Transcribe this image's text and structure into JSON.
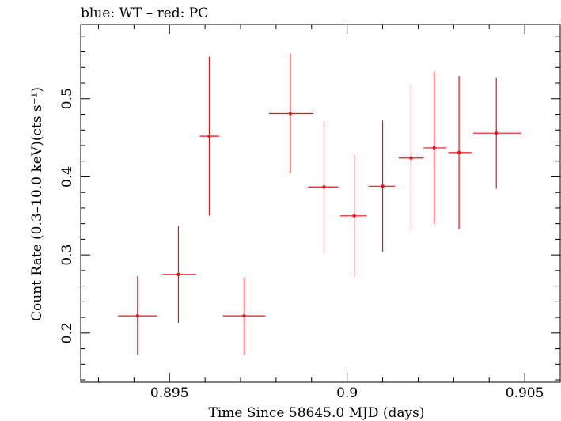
{
  "chart_data": {
    "type": "scatter",
    "title": "blue: WT – red: PC",
    "xlabel": "Time Since 58645.0 MJD (days)",
    "ylabel": "Count Rate (0.3–10.0 keV)(cts s⁻¹)",
    "xlim": [
      0.8925,
      0.906
    ],
    "ylim": [
      0.137,
      0.595
    ],
    "x_ticks": [
      0.895,
      0.9,
      0.905
    ],
    "x_tick_labels": [
      "0.895",
      "0.9",
      "0.905"
    ],
    "y_ticks": [
      0.2,
      0.3,
      0.4,
      0.5
    ],
    "y_tick_labels": [
      "0.2",
      "0.3",
      "0.4",
      "0.5"
    ],
    "grid": false,
    "series": [
      {
        "name": "PC",
        "color": "#e8141b",
        "points": [
          {
            "x": 0.8941,
            "y": 0.222,
            "xlo": 0.89355,
            "xhi": 0.89465,
            "ylo": 0.172,
            "yhi": 0.273
          },
          {
            "x": 0.89525,
            "y": 0.275,
            "xlo": 0.8948,
            "xhi": 0.89575,
            "ylo": 0.213,
            "yhi": 0.337
          },
          {
            "x": 0.89612,
            "y": 0.452,
            "xlo": 0.89585,
            "xhi": 0.8964,
            "ylo": 0.35,
            "yhi": 0.554
          },
          {
            "x": 0.8971,
            "y": 0.222,
            "xlo": 0.8965,
            "xhi": 0.8977,
            "ylo": 0.172,
            "yhi": 0.271
          },
          {
            "x": 0.8984,
            "y": 0.481,
            "xlo": 0.8978,
            "xhi": 0.89905,
            "ylo": 0.405,
            "yhi": 0.558
          },
          {
            "x": 0.89935,
            "y": 0.387,
            "xlo": 0.8989,
            "xhi": 0.89975,
            "ylo": 0.302,
            "yhi": 0.472
          },
          {
            "x": 0.9002,
            "y": 0.35,
            "xlo": 0.8998,
            "xhi": 0.90055,
            "ylo": 0.272,
            "yhi": 0.428
          },
          {
            "x": 0.901,
            "y": 0.388,
            "xlo": 0.9006,
            "xhi": 0.90135,
            "ylo": 0.304,
            "yhi": 0.472
          },
          {
            "x": 0.9018,
            "y": 0.424,
            "xlo": 0.90145,
            "xhi": 0.90215,
            "ylo": 0.332,
            "yhi": 0.517
          },
          {
            "x": 0.90245,
            "y": 0.437,
            "xlo": 0.90215,
            "xhi": 0.9028,
            "ylo": 0.34,
            "yhi": 0.535
          },
          {
            "x": 0.90315,
            "y": 0.431,
            "xlo": 0.90285,
            "xhi": 0.9035,
            "ylo": 0.333,
            "yhi": 0.529
          },
          {
            "x": 0.9042,
            "y": 0.456,
            "xlo": 0.90355,
            "xhi": 0.9049,
            "ylo": 0.385,
            "yhi": 0.527
          }
        ]
      }
    ]
  }
}
